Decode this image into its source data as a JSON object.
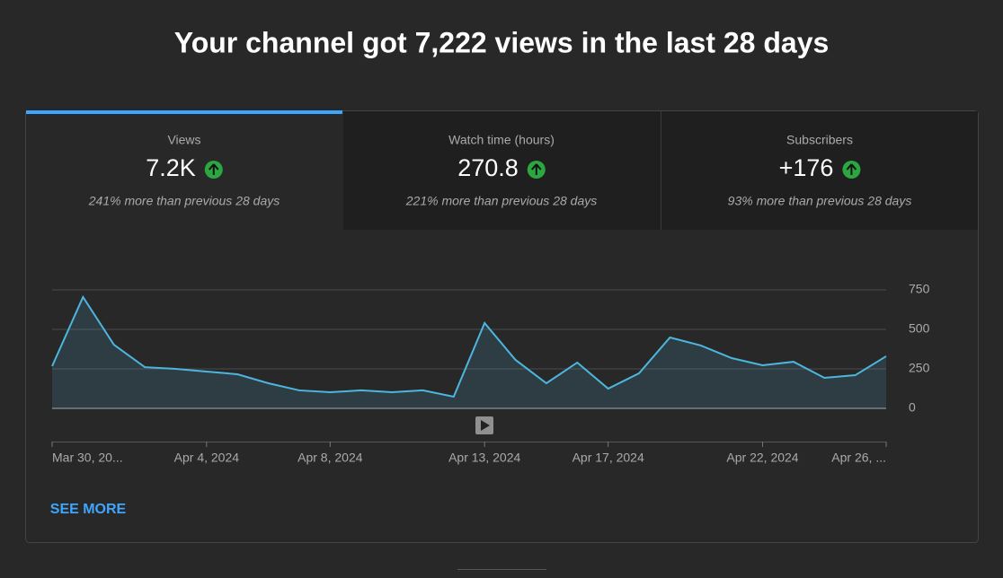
{
  "title": "Your channel got 7,222 views in the last 28 days",
  "tabs": [
    {
      "label": "Views",
      "value": "7.2K",
      "comparison": "241% more than previous 28 days"
    },
    {
      "label": "Watch time (hours)",
      "value": "270.8",
      "comparison": "221% more than previous 28 days"
    },
    {
      "label": "Subscribers",
      "value": "+176",
      "comparison": "93% more than previous 28 days"
    }
  ],
  "chart_data": {
    "type": "line",
    "categories": [
      "Mar 30, 20...",
      null,
      null,
      null,
      null,
      "Apr 4, 2024",
      null,
      null,
      null,
      "Apr 8, 2024",
      null,
      null,
      null,
      null,
      "Apr 13, 2024",
      null,
      null,
      null,
      "Apr 17, 2024",
      null,
      null,
      null,
      null,
      "Apr 22, 2024",
      null,
      null,
      null,
      "Apr 26, ..."
    ],
    "values": [
      267,
      705,
      403,
      261,
      250,
      233,
      216,
      159,
      114,
      102,
      114,
      102,
      114,
      74,
      540,
      307,
      159,
      290,
      125,
      222,
      449,
      398,
      318,
      273,
      295,
      193,
      210,
      330
    ],
    "color": "#4db6de",
    "ylim": [
      0,
      750
    ],
    "yticks": [
      0,
      250,
      500,
      750
    ],
    "grid": true
  },
  "see_more": "SEE MORE"
}
